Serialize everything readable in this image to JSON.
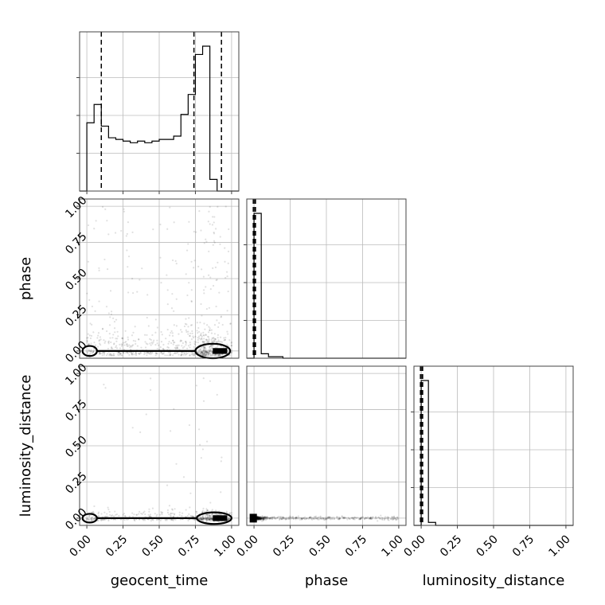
{
  "chart_data": {
    "type": "corner",
    "parameters": [
      "geocent_time",
      "phase",
      "luminosity_distance"
    ],
    "tick_labels": [
      "0.00",
      "0.25",
      "0.50",
      "0.75",
      "1.00"
    ],
    "tick_values": [
      0,
      0.25,
      0.5,
      0.75,
      1.0
    ],
    "xlim": [
      -0.05,
      1.05
    ],
    "ylim": [
      -0.05,
      1.05
    ],
    "grid": true,
    "histograms": {
      "geocent_time": {
        "bin_edges": [
          -0.05,
          0.0,
          0.05,
          0.1,
          0.15,
          0.2,
          0.25,
          0.3,
          0.35,
          0.4,
          0.45,
          0.5,
          0.55,
          0.6,
          0.65,
          0.7,
          0.75,
          0.8,
          0.85,
          0.9,
          0.95,
          1.0,
          1.05
        ],
        "counts": [
          0,
          0.41,
          0.52,
          0.39,
          0.32,
          0.31,
          0.3,
          0.29,
          0.3,
          0.29,
          0.3,
          0.31,
          0.31,
          0.33,
          0.46,
          0.58,
          0.82,
          0.87,
          0.07,
          0,
          0,
          0
        ],
        "quantile_lines": [
          0.1,
          0.74,
          0.93
        ]
      },
      "phase": {
        "bin_edges": [
          -0.05,
          0.0,
          0.05,
          0.1,
          0.15,
          0.2,
          0.25,
          0.3,
          0.35,
          0.4,
          0.45,
          0.5,
          0.55,
          0.6,
          0.65,
          0.7,
          0.75,
          0.8,
          0.85,
          0.9,
          0.95,
          1.0,
          1.05
        ],
        "counts": [
          0,
          0.97,
          0.03,
          0.01,
          0.01,
          0,
          0,
          0,
          0,
          0,
          0,
          0,
          0,
          0,
          0,
          0,
          0,
          0,
          0,
          0,
          0,
          0
        ],
        "quantile_lines": [
          -0.005,
          0.005,
          0.01
        ]
      },
      "luminosity_distance": {
        "bin_edges": [
          -0.05,
          0.0,
          0.05,
          0.1,
          0.15,
          0.2,
          0.25,
          0.3,
          0.35,
          0.4,
          0.45,
          0.5,
          0.55,
          0.6,
          0.65,
          0.7,
          0.75,
          0.8,
          0.85,
          0.9,
          0.95,
          1.0,
          1.05
        ],
        "counts": [
          0,
          0.97,
          0.02,
          0,
          0,
          0,
          0,
          0,
          0,
          0,
          0,
          0,
          0,
          0,
          0,
          0,
          0,
          0,
          0,
          0,
          0,
          0
        ],
        "quantile_lines": [
          -0.005,
          0.005,
          0.01
        ]
      }
    },
    "pairs": [
      {
        "x_param": "geocent_time",
        "y_param": "phase",
        "contour_lobes": [
          {
            "center_x": 0.02,
            "center_y": 0.0,
            "half_width": 0.05,
            "half_height": 0.035
          },
          {
            "center_x": 0.87,
            "center_y": 0.0,
            "half_width": 0.12,
            "half_height": 0.05
          }
        ],
        "dense_block": {
          "x": [
            0.87,
            0.97
          ],
          "y": [
            -0.02,
            0.02
          ]
        },
        "scatter_density": "concentrated near phase 0 across all geocent_time, sparse uniform tail up to phase 1"
      },
      {
        "x_param": "geocent_time",
        "y_param": "luminosity_distance",
        "contour_lobes": [
          {
            "center_x": 0.02,
            "center_y": 0.0,
            "half_width": 0.05,
            "half_height": 0.03
          },
          {
            "center_x": 0.88,
            "center_y": 0.0,
            "half_width": 0.12,
            "half_height": 0.04
          }
        ],
        "dense_block": {
          "x": [
            0.87,
            0.97
          ],
          "y": [
            -0.02,
            0.02
          ]
        },
        "scatter_density": "concentrated near luminosity_distance 0"
      },
      {
        "x_param": "phase",
        "y_param": "luminosity_distance",
        "dense_block": {
          "x": [
            -0.03,
            0.02
          ],
          "y": [
            -0.03,
            0.03
          ]
        },
        "scatter_density": "narrow horizontal band at luminosity_distance 0 spanning phase 0 to 1"
      }
    ]
  }
}
